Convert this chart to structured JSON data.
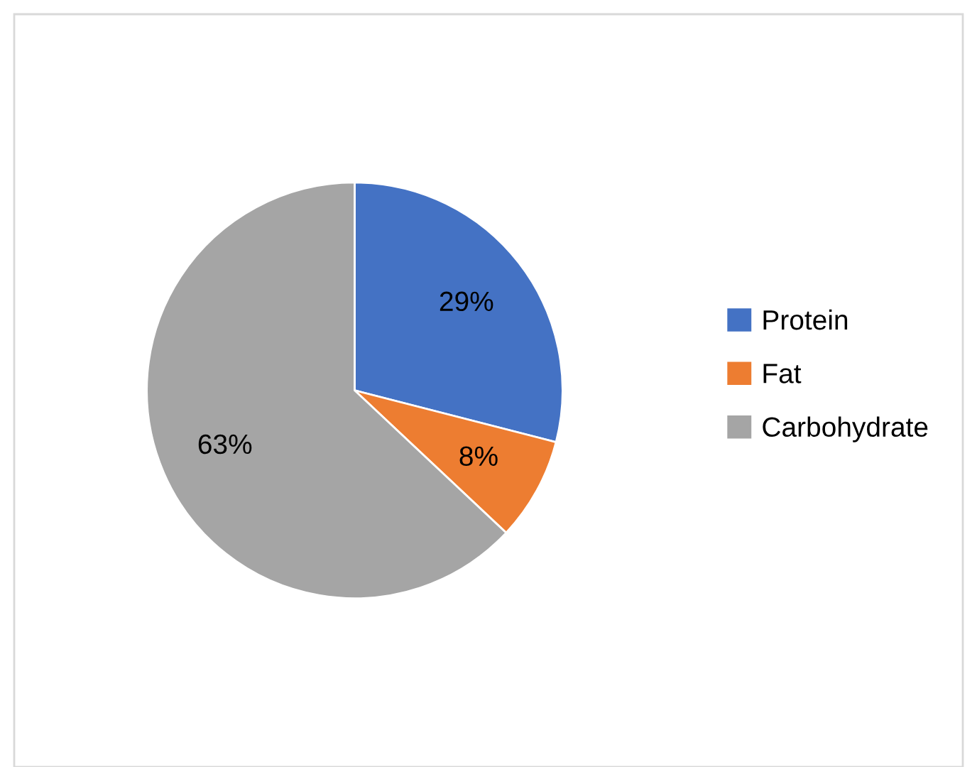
{
  "chart_data": {
    "type": "pie",
    "categories": [
      "Protein",
      "Fat",
      "Carbohydrate"
    ],
    "values": [
      29,
      8,
      63
    ],
    "colors": [
      "#4472c4",
      "#ed7d31",
      "#a5a5a5"
    ],
    "value_labels": [
      "29%",
      "8%",
      "63%"
    ],
    "legend": "right"
  }
}
